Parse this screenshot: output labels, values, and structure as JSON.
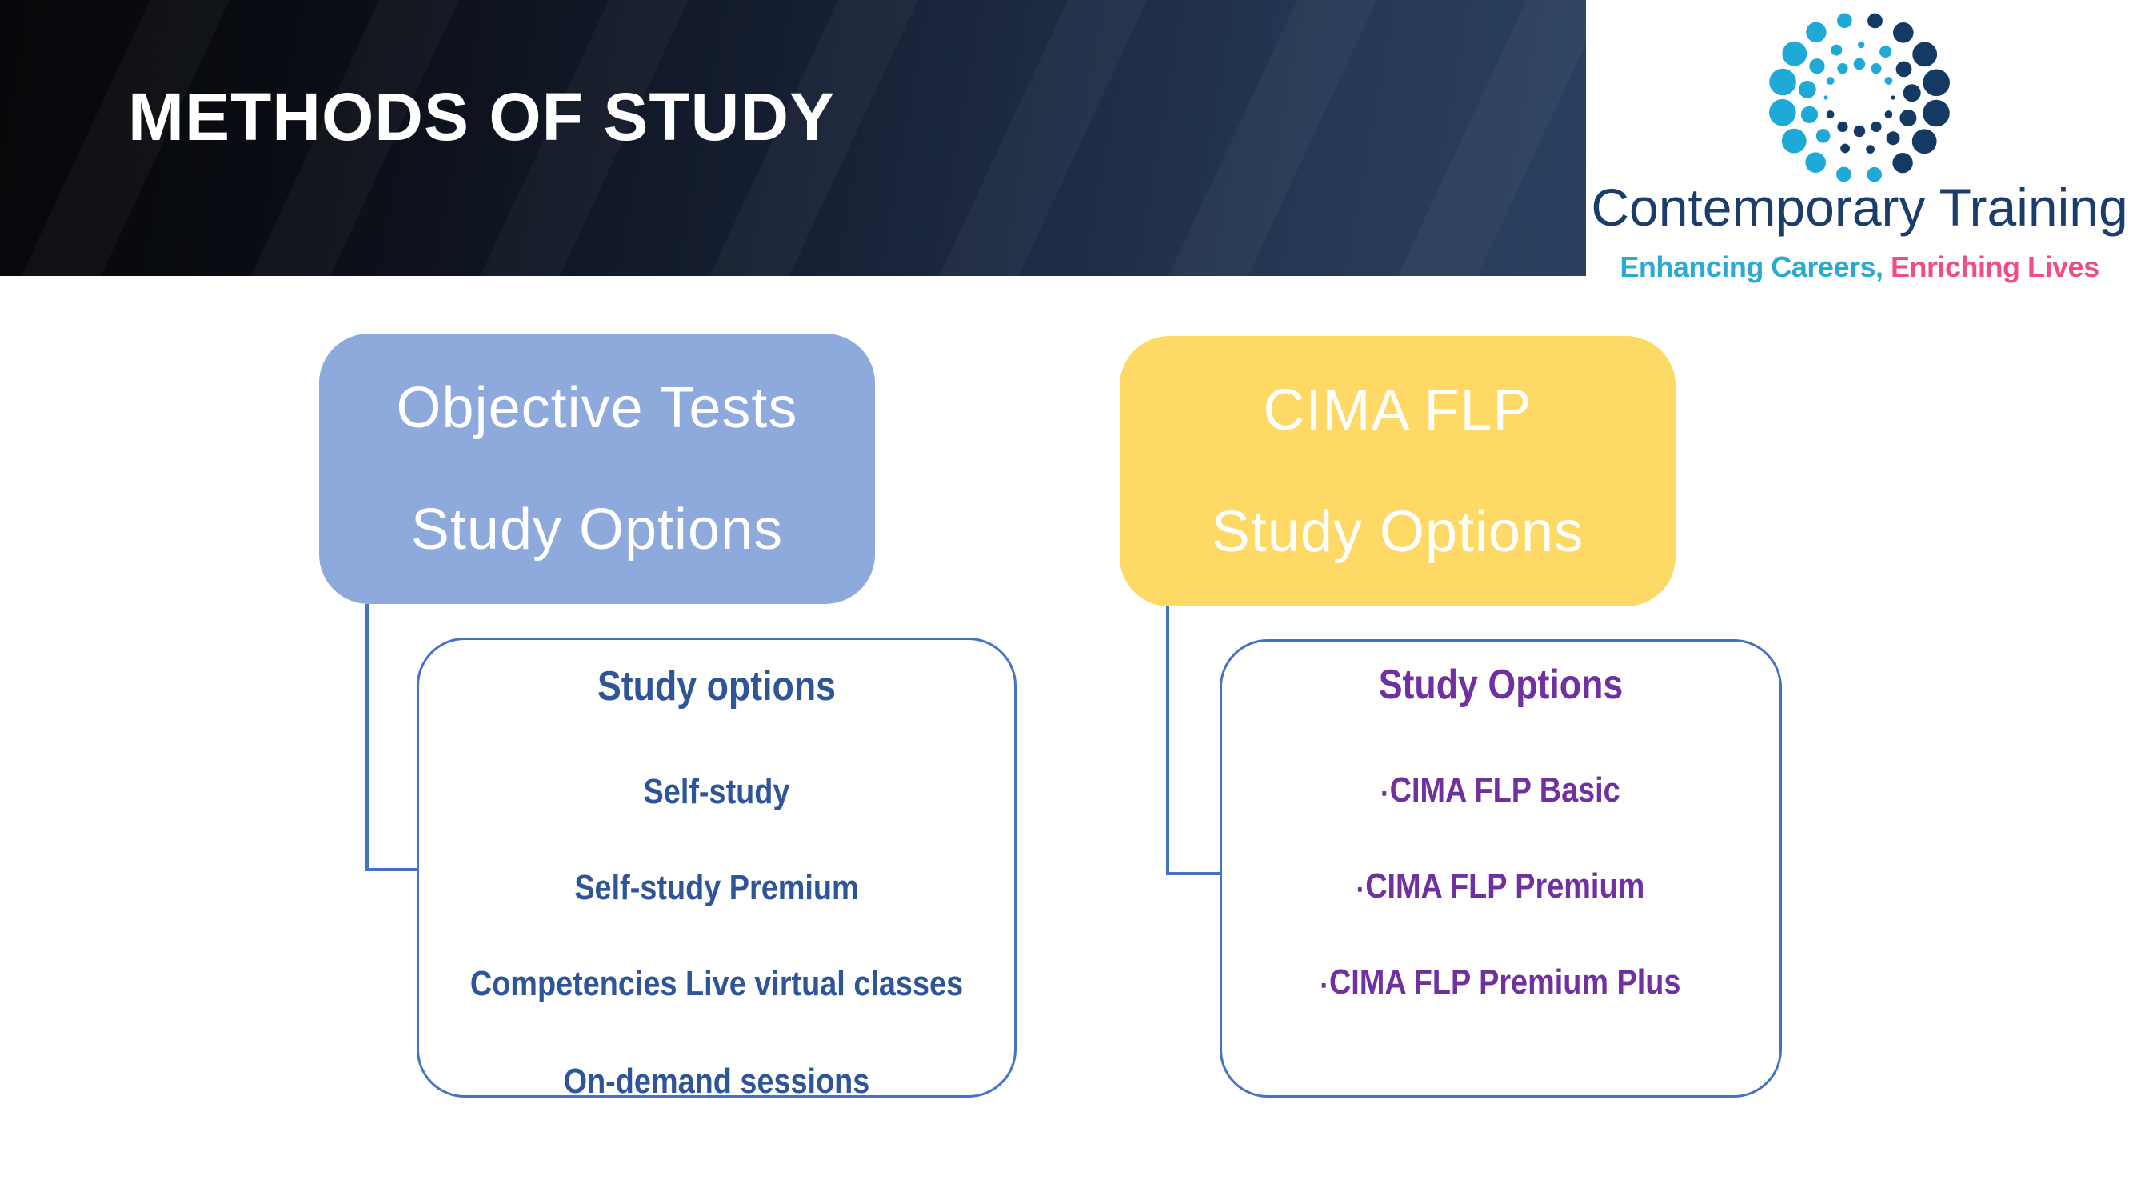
{
  "slide": {
    "title": "METHODS OF STUDY",
    "background": "#ffffff",
    "banner_gradient": [
      "#060709",
      "#2b4061"
    ]
  },
  "logo": {
    "wordmark": "Contemporary Training",
    "tagline_part1": "Enhancing Careers,",
    "tagline_part2": " Enriching Lives",
    "colors": {
      "dot_teal": "#1fa9d6",
      "dot_navy": "#143a64",
      "wordmark_navy": "#1b3d6b",
      "tagline_teal": "#2aa9d2",
      "tagline_pink": "#ee4d87"
    }
  },
  "objective_box": {
    "line1": "Objective Tests",
    "line2": "Study Options",
    "fill": "#8ea9db",
    "text_color": "#ffffff"
  },
  "flp_box": {
    "line1": "CIMA FLP",
    "line2": "Study Options",
    "fill": "#ffd966",
    "text_color": "#ffffff"
  },
  "left_panel": {
    "title": "Study options",
    "items": [
      "Self-study",
      "Self-study Premium",
      "Competencies Live virtual classes",
      "On-demand sessions"
    ],
    "text_color": "#2e5597",
    "border_color": "#4472c4"
  },
  "right_panel": {
    "title": "Study Options",
    "bullet": "▪",
    "items": [
      "CIMA FLP Basic",
      "CIMA FLP Premium",
      "CIMA FLP Premium Plus"
    ],
    "text_color": "#7030a0",
    "border_color": "#4472c4"
  },
  "connector_color": "#4472c4"
}
